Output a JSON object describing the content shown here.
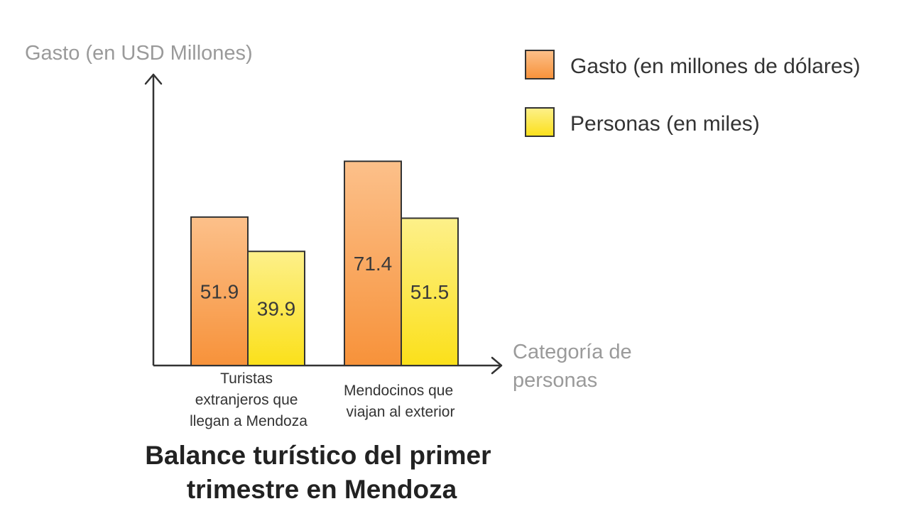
{
  "chart_data": {
    "type": "bar",
    "title": "Balance turístico del primer trimestre en Mendoza",
    "title_lines": [
      "Balance turístico del primer",
      "trimestre en Mendoza"
    ],
    "ylabel": "Gasto (en USD Millones)",
    "xlabel": "Categoría de personas",
    "xlabel_lines": [
      "Categoría de",
      "personas"
    ],
    "categories": [
      "Turistas extranjeros que llegan a Mendoza",
      "Mendocinos que viajan al exterior"
    ],
    "category_lines": [
      [
        "Turistas",
        "extranjeros que",
        "llegan a Mendoza"
      ],
      [
        "Mendocinos que",
        "viajan al exterior"
      ]
    ],
    "series": [
      {
        "name": "Gasto (en millones de dólares)",
        "values": [
          51.9,
          71.4
        ],
        "labels": [
          "51.9",
          "71.4"
        ],
        "color_top": "#fcc08a",
        "color_bottom": "#f7923a"
      },
      {
        "name": "Personas (en miles)",
        "values": [
          39.9,
          51.5
        ],
        "labels": [
          "39.9",
          "51.5"
        ],
        "color_top": "#fdf08a",
        "color_bottom": "#fbe01a"
      }
    ],
    "ylim": [
      0,
      100
    ],
    "grid": false,
    "legend_position": "top-right",
    "axis_color": "#333333",
    "bar_outline_color": "#333333"
  }
}
